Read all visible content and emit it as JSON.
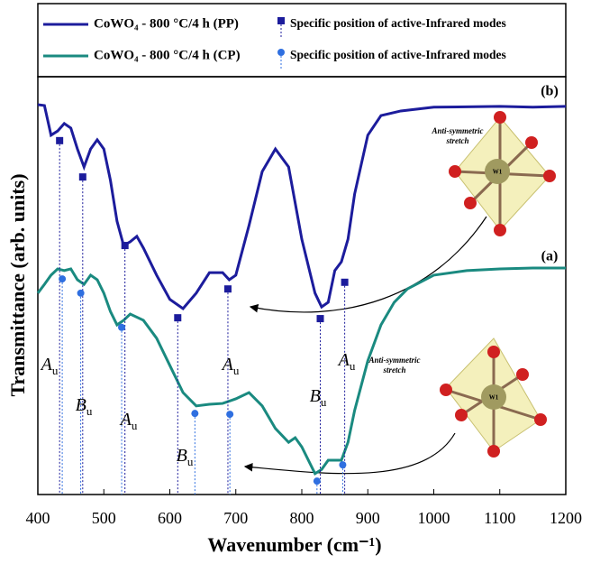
{
  "chart_data": {
    "type": "line",
    "xlabel": "Wavenumber (cm⁻¹)",
    "ylabel": "Transmittance (arb. units)",
    "xlim": [
      400,
      1200
    ],
    "xticks": [
      400,
      500,
      600,
      700,
      800,
      900,
      1000,
      1100,
      1200
    ],
    "ylim": [
      0,
      100
    ],
    "series": [
      {
        "name": "CoWO₄ - 800 °C/4 h (PP)",
        "color": "#1c1c9c",
        "mode": "line",
        "x": [
          400,
          410,
          420,
          430,
          440,
          450,
          460,
          470,
          480,
          490,
          500,
          510,
          520,
          530,
          540,
          550,
          560,
          580,
          600,
          620,
          640,
          660,
          680,
          690,
          700,
          720,
          740,
          760,
          780,
          800,
          820,
          830,
          840,
          850,
          860,
          870,
          880,
          900,
          920,
          950,
          1000,
          1100,
          1150,
          1200
        ],
        "values": [
          93.3,
          93.1,
          86.0,
          87.0,
          88.8,
          87.7,
          82.7,
          78.4,
          82.7,
          84.9,
          82.7,
          75.2,
          65.4,
          59.6,
          60.5,
          61.8,
          59.0,
          52.5,
          46.7,
          44.5,
          48.2,
          53.1,
          53.1,
          51.4,
          52.5,
          64.4,
          77.3,
          82.7,
          78.4,
          61.1,
          48.2,
          44.9,
          46.0,
          53.6,
          55.7,
          61.1,
          71.9,
          86.0,
          90.7,
          91.8,
          92.7,
          92.9,
          92.7,
          92.9
        ]
      },
      {
        "name": "CoWO₄ - 800 °C/4 h (CP)",
        "color": "#1a8a80",
        "mode": "line",
        "x": [
          400,
          410,
          420,
          430,
          440,
          450,
          460,
          470,
          480,
          490,
          500,
          510,
          520,
          530,
          540,
          560,
          580,
          600,
          620,
          640,
          660,
          680,
          700,
          720,
          740,
          760,
          780,
          790,
          800,
          820,
          830,
          840,
          860,
          870,
          880,
          900,
          920,
          940,
          960,
          1000,
          1050,
          1100,
          1150,
          1200
        ],
        "values": [
          48.2,
          50.3,
          52.5,
          54.0,
          53.6,
          54.0,
          51.4,
          50.3,
          52.5,
          51.4,
          48.2,
          43.8,
          40.6,
          41.7,
          43.2,
          41.7,
          37.4,
          30.9,
          24.4,
          21.2,
          21.6,
          21.8,
          22.9,
          24.4,
          21.2,
          15.8,
          12.5,
          13.6,
          11.4,
          5.0,
          6.0,
          8.2,
          8.2,
          12.5,
          20.1,
          32.0,
          40.6,
          46.0,
          49.2,
          52.5,
          53.6,
          54.0,
          54.2,
          54.2
        ]
      },
      {
        "name": "Specific position of active-Infrared modes",
        "color": "#1c1c9c",
        "mode": "square",
        "x": [
          433,
          468,
          532,
          612,
          688,
          828,
          865
        ],
        "values": [
          84.7,
          76.0,
          59.6,
          42.3,
          49.2,
          42.1,
          50.8
        ]
      },
      {
        "name": "Specific position of active-Infrared modes",
        "color": "#2f6fe0",
        "mode": "circle",
        "x": [
          437,
          465,
          527,
          638,
          691,
          823,
          862
        ],
        "values": [
          51.6,
          48.2,
          40.0,
          19.4,
          19.2,
          3.2,
          7.1
        ]
      }
    ],
    "curve_labels": [
      "(b)",
      "(a)"
    ],
    "mode_labels": [
      {
        "text": "A",
        "sub": "u"
      },
      {
        "text": "B",
        "sub": "u"
      },
      {
        "text": "A",
        "sub": "u"
      },
      {
        "text": "B",
        "sub": "u"
      },
      {
        "text": "A",
        "sub": "u"
      },
      {
        "text": "B",
        "sub": "u"
      },
      {
        "text": "A",
        "sub": "u"
      }
    ],
    "inset_caption": [
      "Anti-symmetric",
      "stretch"
    ],
    "inset_center": "W1"
  }
}
